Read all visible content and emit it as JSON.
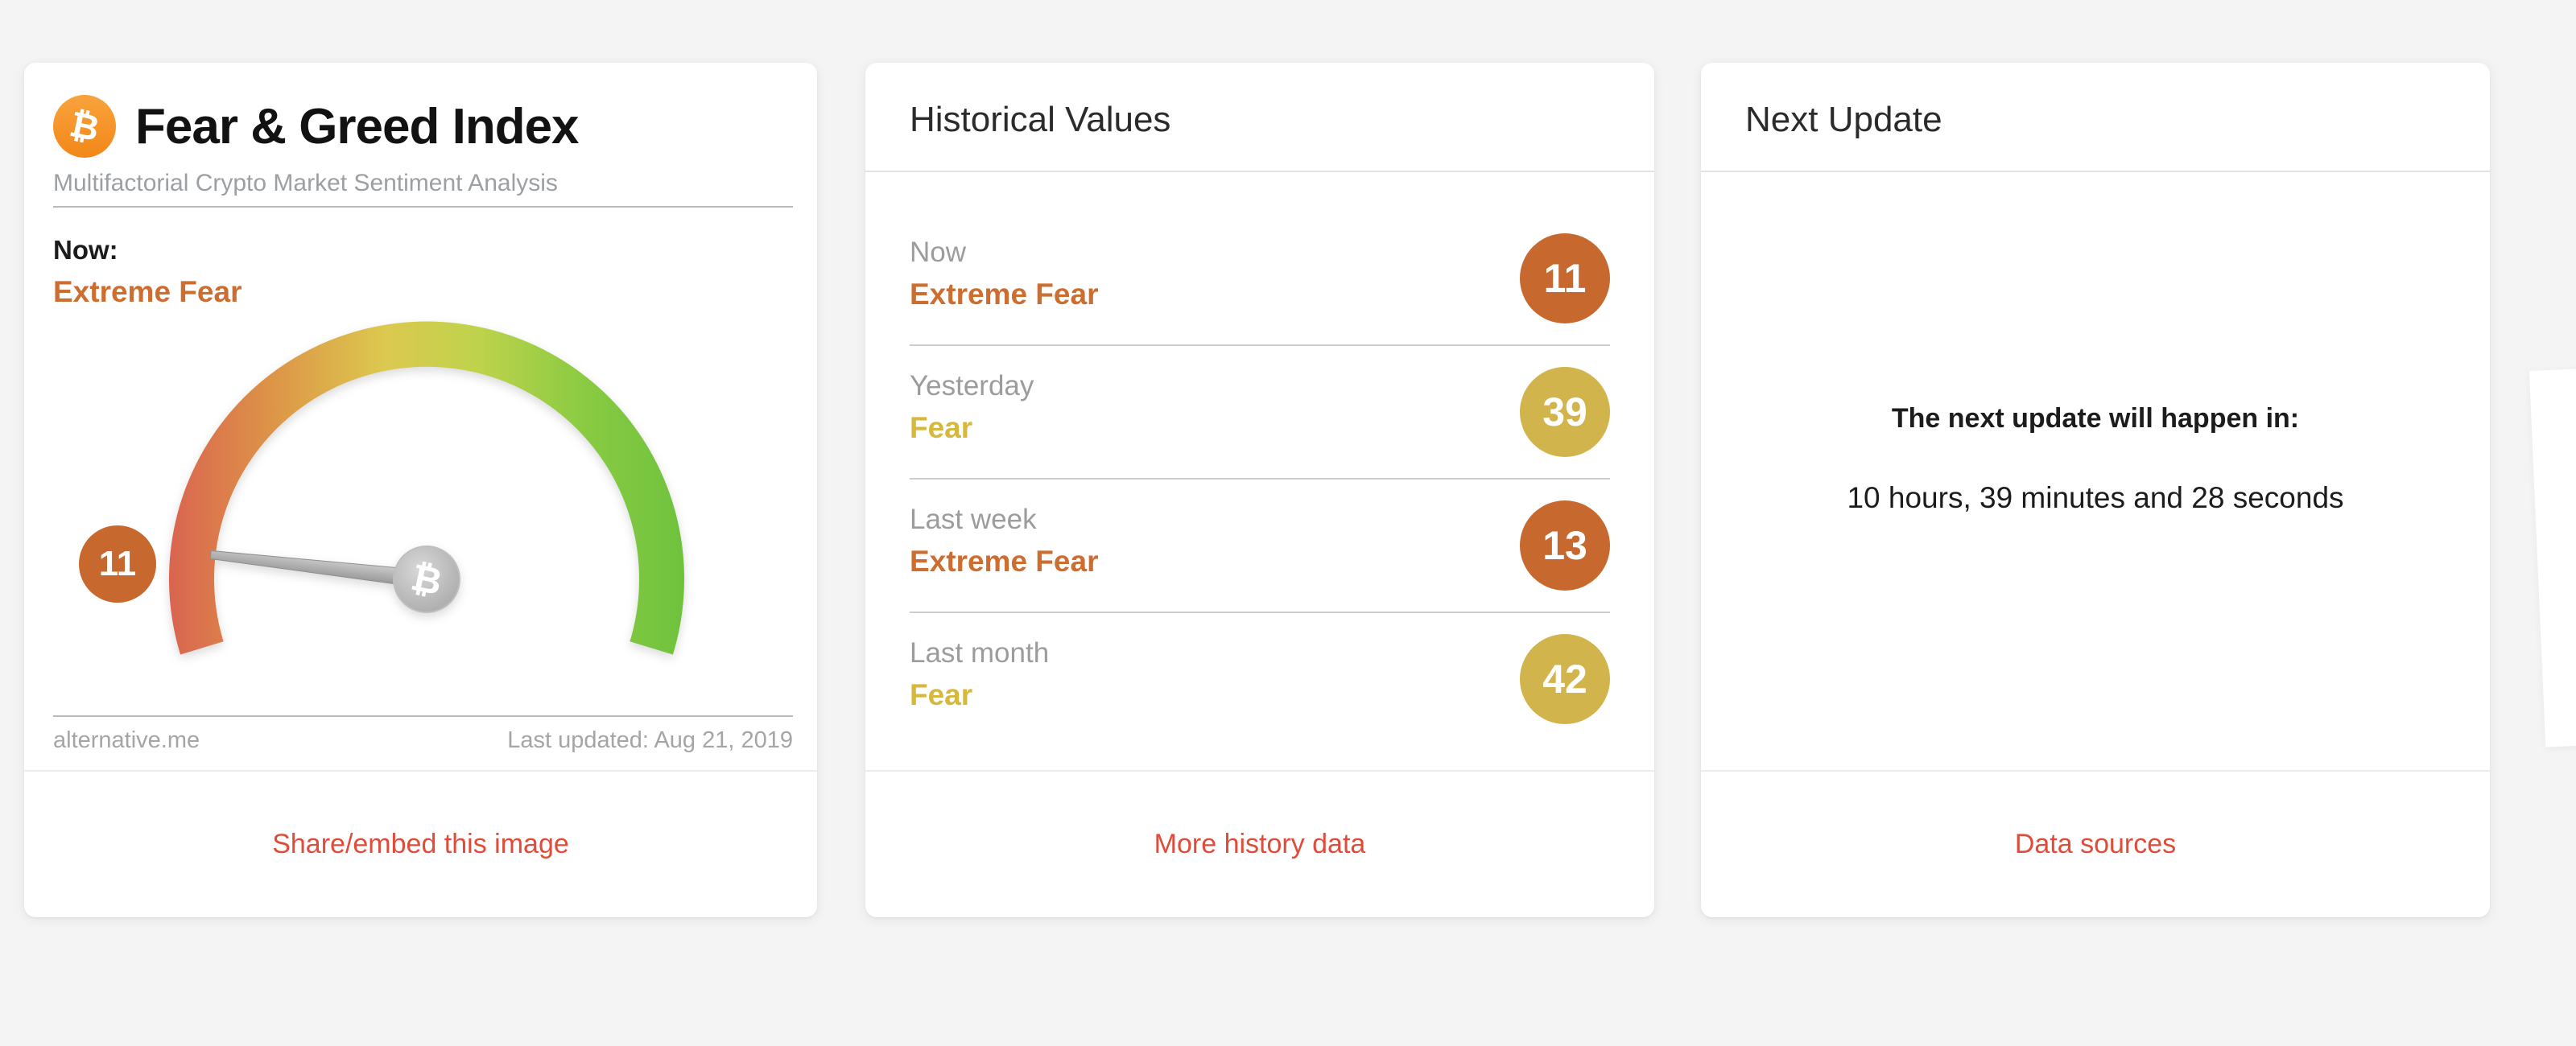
{
  "colors": {
    "accent_red": "#E04C39",
    "extreme_fear_orange": "#C7682F",
    "fear_yellow": "#D2B44C",
    "bitcoin_orange": "#F7941D",
    "label_gray": "#9C9C9C"
  },
  "card_fear_greed": {
    "bitcoin_symbol": "₿",
    "title": "Fear & Greed Index",
    "subtitle": "Multifactorial Crypto Market Sentiment Analysis",
    "now_label": "Now:",
    "now_status": "Extreme Fear",
    "status_color": "#CD6E30",
    "gauge": {
      "value": 11,
      "min": 0,
      "max": 100,
      "badge_color": "#C7682F",
      "hub_symbol": "₿"
    },
    "source": "alternative.me",
    "last_updated": "Last updated: Aug 21, 2019",
    "share_link": "Share/embed this image"
  },
  "card_historical": {
    "title": "Historical Values",
    "rows": [
      {
        "label": "Now",
        "status": "Extreme Fear",
        "value": 11,
        "status_color": "#CD6E30",
        "badge_color": "#C7682F"
      },
      {
        "label": "Yesterday",
        "status": "Fear",
        "value": 39,
        "status_color": "#D5B83C",
        "badge_color": "#D2B44C"
      },
      {
        "label": "Last week",
        "status": "Extreme Fear",
        "value": 13,
        "status_color": "#CD6E30",
        "badge_color": "#C7682F"
      },
      {
        "label": "Last month",
        "status": "Fear",
        "value": 42,
        "status_color": "#D5B83C",
        "badge_color": "#D2B44C"
      }
    ],
    "more_link": "More history data"
  },
  "card_next_update": {
    "title": "Next Update",
    "heading": "The next update will happen in:",
    "countdown": "10 hours, 39 minutes and 28 seconds",
    "link": "Data sources"
  }
}
